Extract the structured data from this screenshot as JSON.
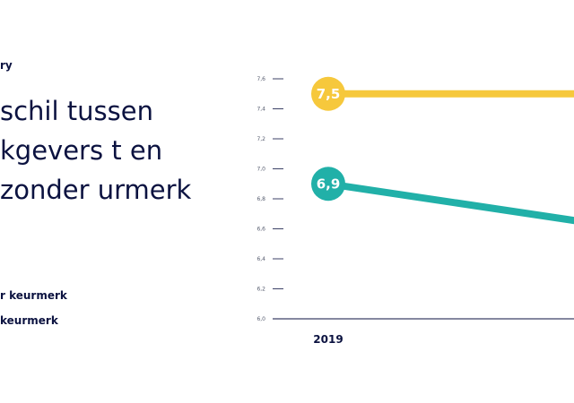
{
  "kicker": "ry",
  "title": "schil tussen kgevers t en zonder urmerk",
  "legend": [
    "r keurmerk",
    "keurmerk"
  ],
  "colors": {
    "yellow": "#f6c83c",
    "teal": "#21b0a8",
    "axis": "#0b1240",
    "grid": "#0b1240"
  },
  "chart_data": {
    "type": "line",
    "x": [
      "2019"
    ],
    "ylim": [
      6.0,
      7.6
    ],
    "yticks": [
      "7,6",
      "7,4",
      "7,2",
      "7,0",
      "6,8",
      "6,6",
      "6,4",
      "6,2",
      "6,0"
    ],
    "series": [
      {
        "values": [
          7.5
        ],
        "labels": [
          "7,5"
        ],
        "trend_end": 7.5,
        "color": "#f6c83c"
      },
      {
        "values": [
          6.9
        ],
        "labels": [
          "6,9"
        ],
        "trend_end": 6.62,
        "color": "#21b0a8"
      }
    ]
  }
}
